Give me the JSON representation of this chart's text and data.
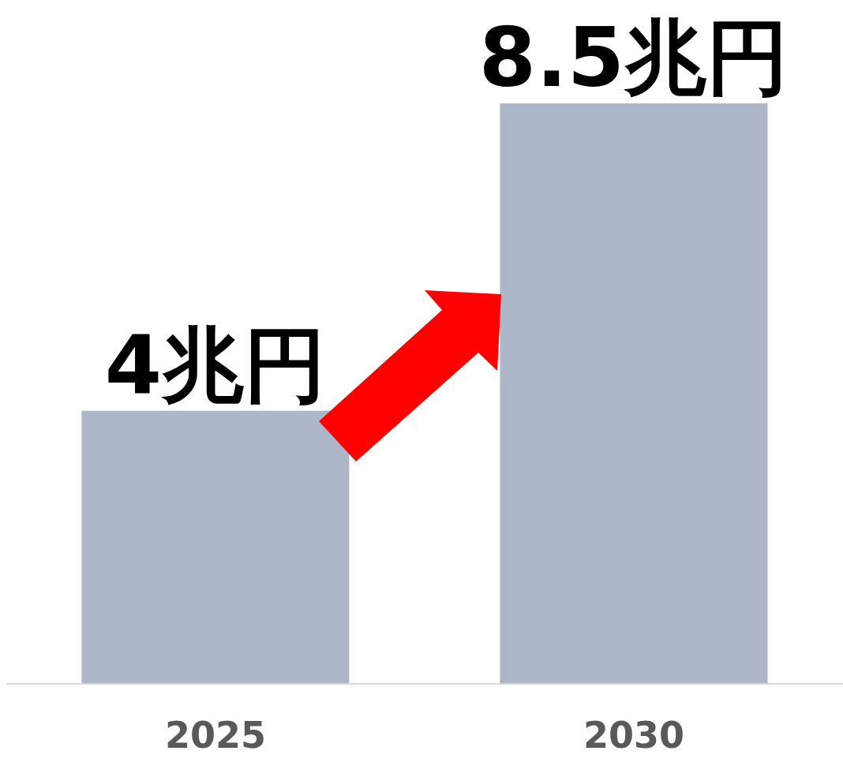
{
  "chart_data": {
    "type": "bar",
    "categories": [
      "2025",
      "2030"
    ],
    "values": [
      4,
      8.5
    ],
    "value_labels": [
      "4兆円",
      "8.5兆円"
    ],
    "color": "#adb7c9",
    "grid": false,
    "legend": false
  }
}
